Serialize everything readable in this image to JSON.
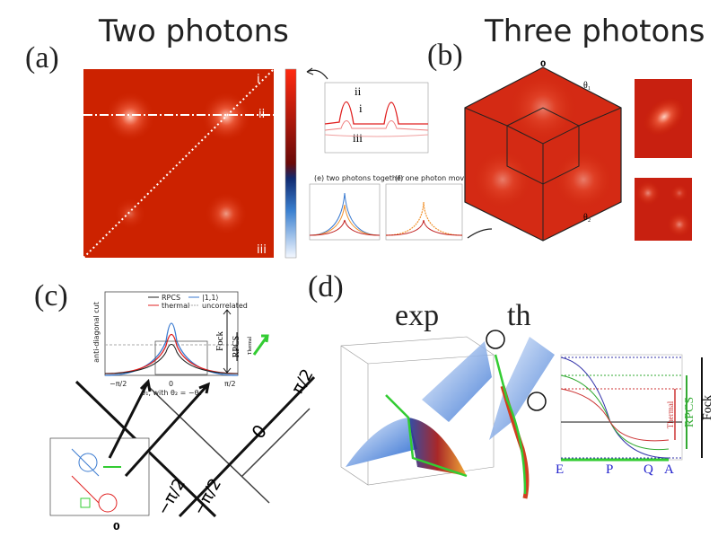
{
  "panel_a": {
    "label": "(a)",
    "title": "Two photons",
    "line_labels": [
      "i",
      "ii",
      "iii"
    ],
    "plot_labels": [
      "ii",
      "i",
      "iii"
    ],
    "inset_titles": [
      "(e) two photons together",
      "(f) one photon moving"
    ]
  },
  "panel_b": {
    "label": "(b)",
    "title": "Three photons",
    "axis_labels": [
      "θ₁",
      "θ₂"
    ],
    "corner_label": "0"
  },
  "panel_c": {
    "label": "(c)",
    "plot_ylabel": "anti-diagonal cut",
    "plot_xlabel": "θ₁, with θ₂ = −θ₁",
    "legend": [
      "RPCS",
      "thermal",
      "|1,1⟩",
      "uncorrelated"
    ],
    "xticks": [
      "−π/2",
      "0",
      "π/2"
    ],
    "brackets": [
      "Fock",
      "RPCS",
      "Thermal"
    ],
    "axis_labels": [
      "0",
      "−π/2",
      "−π/2",
      "π/2"
    ],
    "inset_zero": "0"
  },
  "panel_d": {
    "label": "(d)",
    "titles": [
      "exp",
      "th"
    ],
    "brackets": [
      "Thermal",
      "RPCS",
      "Fock"
    ],
    "points": [
      "E",
      "P",
      "Q",
      "A"
    ]
  }
}
